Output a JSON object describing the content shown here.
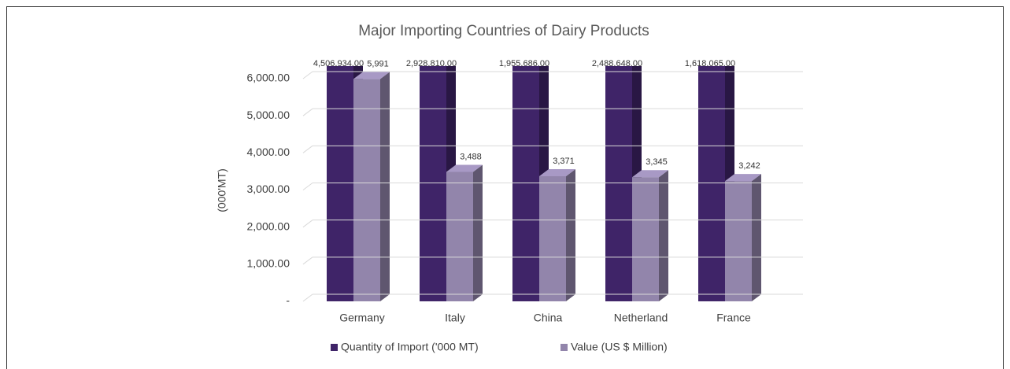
{
  "chart_data": {
    "type": "bar3d",
    "title": "Major Importing Countries of Dairy Products",
    "y_label": "(000'MT)",
    "categories": [
      "Germany",
      "Italy",
      "China",
      "Netherland",
      "France"
    ],
    "series": [
      {
        "name": "Quantity of Import ('000 MT)",
        "color": "#3f2468",
        "values": [
          4506934,
          2928810,
          1955686,
          2488648,
          1618065
        ],
        "value_labels": [
          "4,506,934.00",
          "2,928,810.00",
          "1,955,686.00",
          "2,488,648.00",
          "1,618,065.00"
        ]
      },
      {
        "name": "Value (US $ Million)",
        "color": "#9285ab",
        "values": [
          5991,
          3488,
          3371,
          3345,
          3242
        ],
        "value_labels": [
          "5,991",
          "3,488",
          "3,371",
          "3,345",
          "3,242"
        ]
      }
    ],
    "ylim": [
      0,
      6000
    ],
    "yticks": [
      {
        "value": 0,
        "label": "-"
      },
      {
        "value": 1000,
        "label": "1,000.00"
      },
      {
        "value": 2000,
        "label": "2,000.00"
      },
      {
        "value": 3000,
        "label": "3,000.00"
      },
      {
        "value": 4000,
        "label": "4,000.00"
      },
      {
        "value": 5000,
        "label": "5,000.00"
      },
      {
        "value": 6000,
        "label": "6,000.00"
      }
    ],
    "grid": true,
    "legend": "bottom"
  }
}
